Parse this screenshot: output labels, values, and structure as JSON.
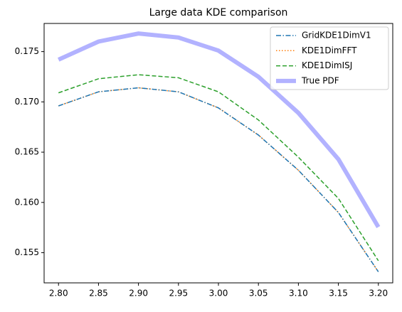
{
  "chart_data": {
    "type": "line",
    "title": "Large data KDE comparison",
    "x": [
      2.8,
      2.85,
      2.9,
      2.95,
      3.0,
      3.05,
      3.1,
      3.15,
      3.2
    ],
    "series": [
      {
        "name": "GridKDE1DimV1",
        "color": "#1f77b4",
        "linestyle": "dashdot",
        "linewidth": 1.5,
        "values": [
          0.1696,
          0.171,
          0.1714,
          0.171,
          0.1694,
          0.1667,
          0.1632,
          0.159,
          0.1531
        ]
      },
      {
        "name": "KDE1DimFFT",
        "color": "#ff7f0e",
        "linestyle": "dotted",
        "linewidth": 1.5,
        "values": [
          0.1696,
          0.171,
          0.1714,
          0.171,
          0.1694,
          0.1667,
          0.1632,
          0.159,
          0.1531
        ]
      },
      {
        "name": "KDE1DimISJ",
        "color": "#2ca02c",
        "linestyle": "dashed",
        "linewidth": 1.5,
        "values": [
          0.1709,
          0.1723,
          0.1727,
          0.1724,
          0.171,
          0.1682,
          0.1645,
          0.1604,
          0.1542
        ]
      },
      {
        "name": "True PDF",
        "color": "#b2b2ff",
        "linestyle": "solid",
        "linewidth": 6,
        "values": [
          0.1742,
          0.176,
          0.1768,
          0.1764,
          0.1751,
          0.1725,
          0.1689,
          0.1643,
          0.15755
        ]
      }
    ],
    "xlim": [
      2.782,
      3.218
    ],
    "xticks": [
      {
        "value": 2.8,
        "label": "2.80"
      },
      {
        "value": 2.85,
        "label": "2.85"
      },
      {
        "value": 2.9,
        "label": "2.90"
      },
      {
        "value": 2.95,
        "label": "2.95"
      },
      {
        "value": 3.0,
        "label": "3.00"
      },
      {
        "value": 3.05,
        "label": "3.05"
      },
      {
        "value": 3.1,
        "label": "3.10"
      },
      {
        "value": 3.15,
        "label": "3.15"
      },
      {
        "value": 3.2,
        "label": "3.20"
      }
    ],
    "ylim": [
      0.152,
      0.1778
    ],
    "yticks": [
      0.155,
      {
        "value": 0.16,
        "label": "0.160"
      },
      0.165,
      {
        "value": 0.17,
        "label": "0.170"
      },
      0.175
    ],
    "grid": false,
    "legend": "upper right"
  }
}
